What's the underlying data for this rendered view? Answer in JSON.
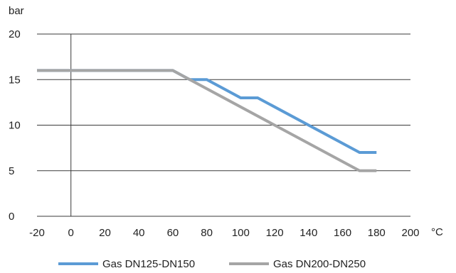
{
  "chart_data": {
    "type": "line",
    "title": "",
    "xlabel": "°C",
    "ylabel": "bar",
    "xlim": [
      -20,
      200
    ],
    "ylim": [
      0,
      20
    ],
    "x_ticks": [
      -20,
      0,
      20,
      40,
      60,
      80,
      100,
      120,
      140,
      160,
      180,
      200
    ],
    "y_ticks": [
      0,
      5,
      10,
      15,
      20
    ],
    "grid": "horizontal",
    "legend_position": "bottom",
    "series": [
      {
        "name": "Gas DN125-DN150",
        "color": "#5b9bd5",
        "points": [
          {
            "x": -20,
            "y": 16
          },
          {
            "x": 60,
            "y": 16
          },
          {
            "x": 70,
            "y": 15
          },
          {
            "x": 80,
            "y": 15
          },
          {
            "x": 100,
            "y": 13
          },
          {
            "x": 110,
            "y": 13
          },
          {
            "x": 170,
            "y": 7
          },
          {
            "x": 180,
            "y": 7
          }
        ]
      },
      {
        "name": "Gas DN200-DN250",
        "color": "#a5a5a5",
        "points": [
          {
            "x": -20,
            "y": 16
          },
          {
            "x": 60,
            "y": 16
          },
          {
            "x": 170,
            "y": 5
          },
          {
            "x": 180,
            "y": 5
          }
        ]
      }
    ]
  }
}
